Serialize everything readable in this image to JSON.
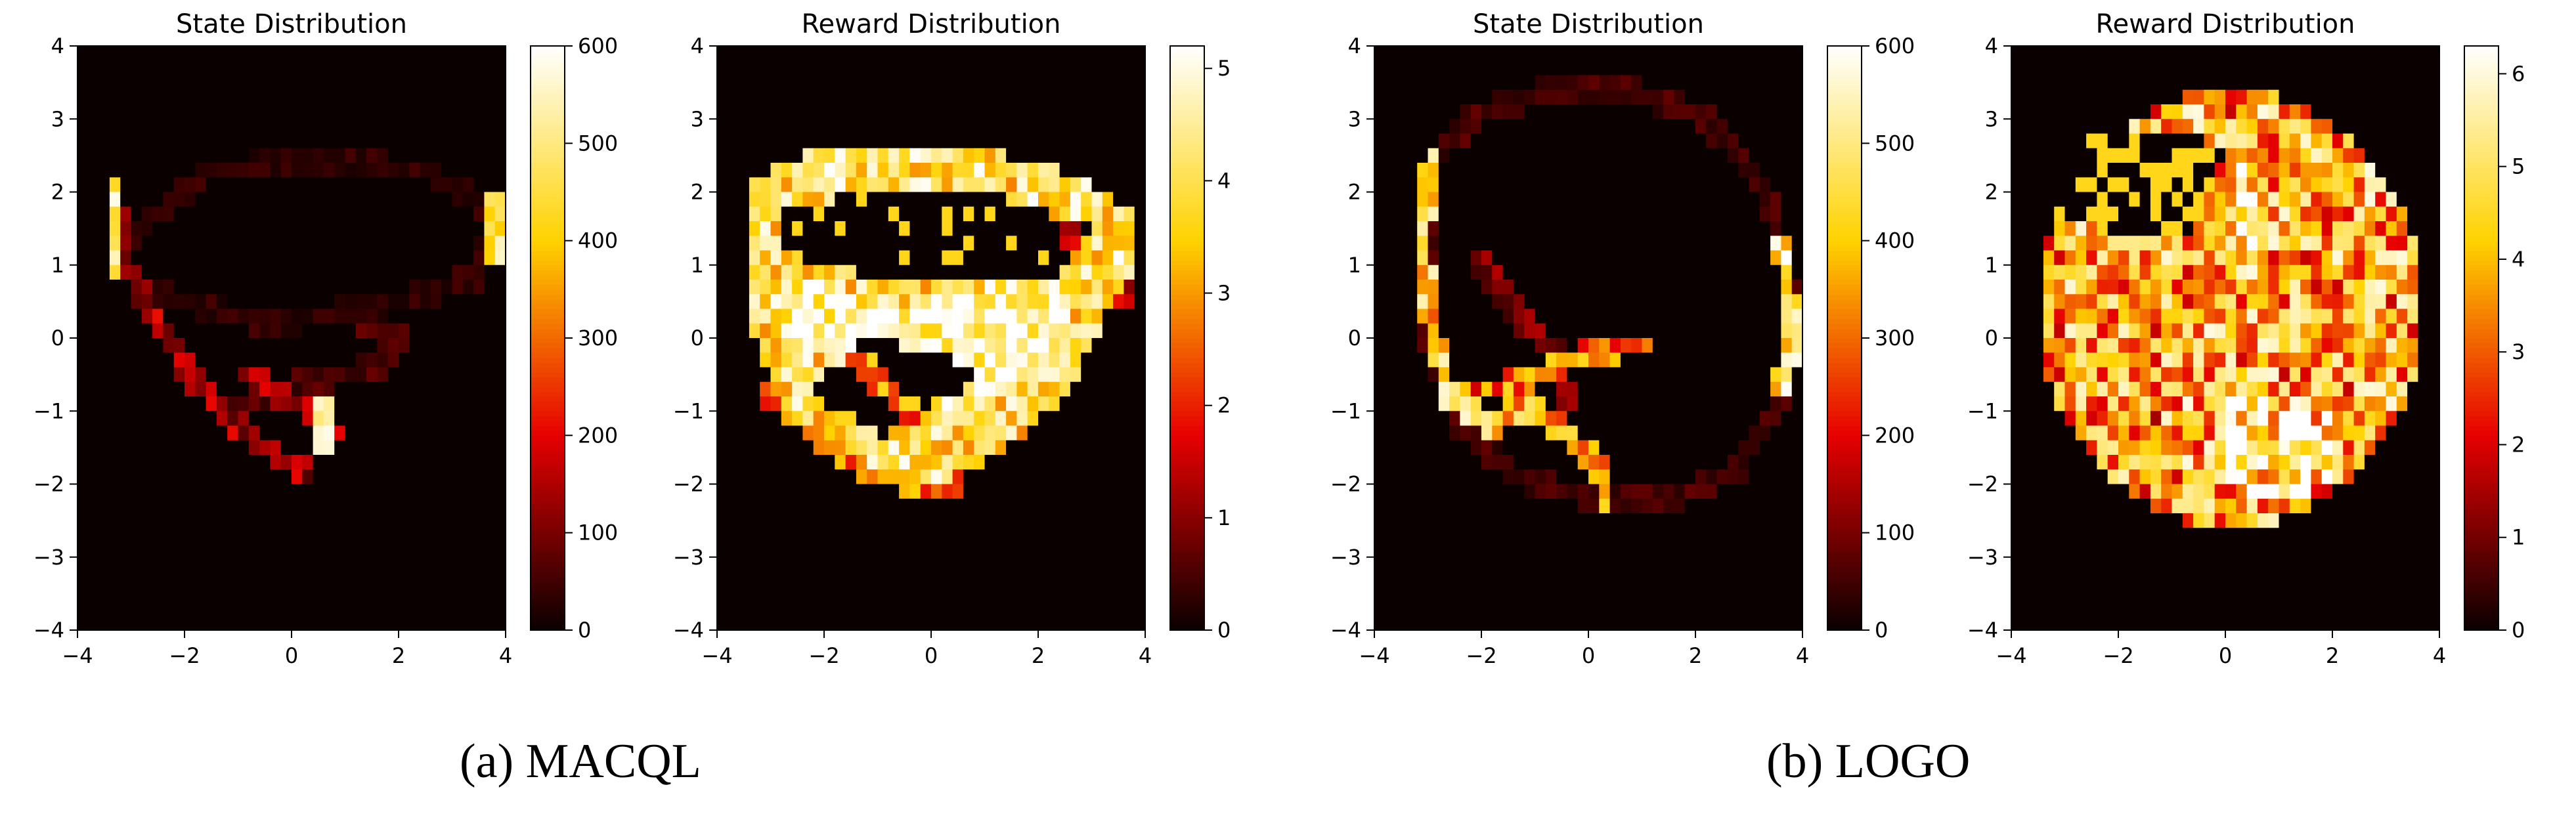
{
  "captions": {
    "a": "(a) MACQL",
    "b": "(b) LOGO"
  },
  "colormap": {
    "name": "hot",
    "stops": [
      "#0a0000",
      "#e60000",
      "#ffd200",
      "#ffffff"
    ]
  },
  "chart_data": [
    {
      "type": "heatmap",
      "title": "State Distribution",
      "xlabel": "",
      "ylabel": "",
      "xlim": [
        -4,
        4
      ],
      "ylim": [
        -4,
        4
      ],
      "xticks": [
        -4,
        -2,
        0,
        2,
        4
      ],
      "yticks": [
        -4,
        -3,
        -2,
        -1,
        0,
        1,
        2,
        3,
        4
      ],
      "colorbar": {
        "range": [
          0,
          600
        ],
        "ticks": [
          0,
          100,
          200,
          300,
          400,
          500,
          600
        ]
      },
      "grid": false,
      "grid_size": 40,
      "background_value": 0,
      "features": [
        {
          "kind": "stroke",
          "value": 140,
          "noise": 0.55,
          "points": [
            [
              -3.3,
              2.1
            ],
            [
              -3.2,
              1.2
            ],
            [
              -2.6,
              0.3
            ],
            [
              -1.8,
              -0.6
            ],
            [
              -1.0,
              -1.2
            ],
            [
              -0.3,
              -1.6
            ],
            [
              0.2,
              -1.8
            ]
          ]
        },
        {
          "kind": "stroke",
          "value": 520,
          "noise": 0.2,
          "points": [
            [
              -3.3,
              2.1
            ],
            [
              -3.3,
              1.0
            ]
          ]
        },
        {
          "kind": "stroke",
          "value": 560,
          "noise": 0.15,
          "points": [
            [
              0.6,
              -1.0
            ],
            [
              0.6,
              -1.5
            ]
          ]
        },
        {
          "kind": "stroke",
          "value": 480,
          "noise": 0.2,
          "points": [
            [
              3.8,
              1.9
            ],
            [
              3.8,
              1.2
            ]
          ]
        },
        {
          "kind": "stroke",
          "value": 35,
          "noise": 0.6,
          "points": [
            [
              -3.2,
              1.3
            ],
            [
              -1.5,
              2.3
            ],
            [
              0.5,
              2.4
            ],
            [
              2.5,
              2.3
            ],
            [
              3.8,
              1.7
            ],
            [
              3.4,
              0.8
            ],
            [
              1.5,
              0.4
            ],
            [
              -0.5,
              0.2
            ],
            [
              -2.6,
              0.6
            ]
          ]
        },
        {
          "kind": "stroke",
          "value": 60,
          "noise": 0.5,
          "points": [
            [
              -1.2,
              -1.0
            ],
            [
              0.3,
              -0.6
            ],
            [
              1.6,
              -0.4
            ],
            [
              2.0,
              0.0
            ],
            [
              1.2,
              0.3
            ]
          ]
        },
        {
          "kind": "stroke",
          "value": 150,
          "noise": 0.4,
          "points": [
            [
              -0.8,
              -0.5
            ],
            [
              0.3,
              -1.0
            ],
            [
              0.8,
              -1.3
            ]
          ]
        }
      ]
    },
    {
      "type": "heatmap",
      "title": "Reward Distribution",
      "xlabel": "",
      "ylabel": "",
      "xlim": [
        -4,
        4
      ],
      "ylim": [
        -4,
        4
      ],
      "xticks": [
        -4,
        -2,
        0,
        2,
        4
      ],
      "yticks": [
        -4,
        -3,
        -2,
        -1,
        0,
        1,
        2,
        3,
        4
      ],
      "colorbar": {
        "range": [
          0,
          5.2
        ],
        "ticks": [
          0,
          1,
          2,
          3,
          4,
          5
        ]
      },
      "grid": false,
      "grid_size": 40,
      "background_value": 0,
      "features": [
        {
          "kind": "polygon",
          "value": 4.0,
          "noise": 0.3,
          "points": [
            [
              -3.3,
              2.2
            ],
            [
              -2.0,
              2.6
            ],
            [
              0.0,
              2.7
            ],
            [
              2.2,
              2.4
            ],
            [
              3.7,
              1.8
            ],
            [
              3.8,
              1.0
            ],
            [
              3.3,
              0.4
            ],
            [
              2.6,
              -0.8
            ],
            [
              1.2,
              -1.6
            ],
            [
              0.2,
              -2.0
            ],
            [
              -1.4,
              -1.7
            ],
            [
              -2.6,
              -1.1
            ],
            [
              -3.3,
              0.0
            ]
          ]
        },
        {
          "kind": "polygon",
          "value": 4.9,
          "noise": 0.3,
          "points": [
            [
              -2.9,
              1.0
            ],
            [
              -1.0,
              0.4
            ],
            [
              1.0,
              0.6
            ],
            [
              2.8,
              0.5
            ],
            [
              2.2,
              -0.5
            ],
            [
              0.4,
              -1.2
            ],
            [
              -1.0,
              -0.6
            ],
            [
              -2.6,
              0.0
            ]
          ]
        },
        {
          "kind": "polygon",
          "value": 0,
          "noise": 0.1,
          "points": [
            [
              -2.8,
              1.7
            ],
            [
              -1.2,
              2.0
            ],
            [
              1.0,
              2.0
            ],
            [
              3.0,
              1.5
            ],
            [
              2.4,
              0.9
            ],
            [
              0.4,
              0.8
            ],
            [
              -1.5,
              0.9
            ],
            [
              -2.7,
              1.2
            ]
          ]
        },
        {
          "kind": "polygon",
          "value": 0,
          "noise": 0.15,
          "points": [
            [
              -2.2,
              -0.6
            ],
            [
              -1.2,
              0.0
            ],
            [
              0.0,
              -0.2
            ],
            [
              1.0,
              -0.4
            ],
            [
              0.3,
              -0.9
            ],
            [
              -0.9,
              -1.3
            ],
            [
              -1.8,
              -1.2
            ]
          ]
        },
        {
          "kind": "stroke",
          "value": 2.0,
          "noise": 0.2,
          "points": [
            [
              -1.6,
              -0.1
            ],
            [
              -0.6,
              -0.9
            ],
            [
              0.4,
              -2.0
            ]
          ]
        },
        {
          "kind": "stroke",
          "value": 2.6,
          "noise": 0.35,
          "points": [
            [
              -3.0,
              -0.8
            ],
            [
              -2.0,
              -1.4
            ],
            [
              -1.0,
              -1.9
            ],
            [
              0.0,
              -2.0
            ]
          ]
        },
        {
          "kind": "stroke",
          "value": 1.5,
          "noise": 0.4,
          "points": [
            [
              2.6,
              1.4
            ],
            [
              3.2,
              1.0
            ],
            [
              3.6,
              0.6
            ]
          ]
        }
      ]
    },
    {
      "type": "heatmap",
      "title": "State Distribution",
      "xlabel": "",
      "ylabel": "",
      "xlim": [
        -4,
        4
      ],
      "ylim": [
        -4,
        4
      ],
      "xticks": [
        -4,
        -2,
        0,
        2,
        4
      ],
      "yticks": [
        -4,
        -3,
        -2,
        -1,
        0,
        1,
        2,
        3,
        4
      ],
      "colorbar": {
        "range": [
          0,
          600
        ],
        "ticks": [
          0,
          100,
          200,
          300,
          400,
          500,
          600
        ]
      },
      "grid": false,
      "grid_size": 40,
      "background_value": 0,
      "features": [
        {
          "kind": "stroke",
          "value": 55,
          "noise": 0.5,
          "points": [
            [
              -3.0,
              2.3
            ],
            [
              -2.2,
              3.0
            ],
            [
              -0.8,
              3.4
            ],
            [
              0.8,
              3.4
            ],
            [
              2.2,
              3.0
            ],
            [
              3.3,
              2.0
            ],
            [
              3.8,
              0.6
            ],
            [
              3.6,
              -0.8
            ],
            [
              2.8,
              -1.8
            ],
            [
              1.5,
              -2.2
            ],
            [
              0.0,
              -2.2
            ],
            [
              -1.4,
              -1.9
            ],
            [
              -2.4,
              -1.2
            ],
            [
              -3.0,
              0.0
            ],
            [
              -3.0,
              1.2
            ],
            [
              -3.0,
              2.3
            ]
          ]
        },
        {
          "kind": "stroke",
          "value": 420,
          "noise": 0.35,
          "points": [
            [
              -2.9,
              2.5
            ],
            [
              -3.1,
              1.5
            ],
            [
              -3.0,
              0.3
            ],
            [
              -2.6,
              -0.8
            ],
            [
              -1.8,
              -1.2
            ],
            [
              -1.0,
              -1.0
            ]
          ]
        },
        {
          "kind": "stroke",
          "value": 300,
          "noise": 0.45,
          "points": [
            [
              -2.4,
              -0.8
            ],
            [
              -1.2,
              -0.6
            ],
            [
              0.0,
              -0.2
            ],
            [
              1.0,
              -0.1
            ]
          ]
        },
        {
          "kind": "stroke",
          "value": 330,
          "noise": 0.4,
          "points": [
            [
              -1.4,
              -1.0
            ],
            [
              -0.6,
              -1.2
            ],
            [
              0.2,
              -1.7
            ],
            [
              0.3,
              -2.2
            ]
          ]
        },
        {
          "kind": "stroke",
          "value": 100,
          "noise": 0.55,
          "points": [
            [
              -2.0,
              1.0
            ],
            [
              -1.2,
              0.2
            ],
            [
              -0.6,
              -0.2
            ],
            [
              -0.4,
              -0.8
            ]
          ]
        },
        {
          "kind": "stroke",
          "value": 470,
          "noise": 0.3,
          "points": [
            [
              3.6,
              1.3
            ],
            [
              3.8,
              0.3
            ],
            [
              3.6,
              -0.7
            ]
          ]
        },
        {
          "kind": "stroke",
          "value": 560,
          "noise": 0.15,
          "points": [
            [
              3.8,
              0.2
            ],
            [
              3.9,
              -0.2
            ]
          ]
        }
      ]
    },
    {
      "type": "heatmap",
      "title": "Reward Distribution",
      "xlabel": "",
      "ylabel": "",
      "xlim": [
        -4,
        4
      ],
      "ylim": [
        -4,
        4
      ],
      "xticks": [
        -4,
        -2,
        0,
        2,
        4
      ],
      "yticks": [
        -4,
        -3,
        -2,
        -1,
        0,
        1,
        2,
        3,
        4
      ],
      "colorbar": {
        "range": [
          0,
          6.3
        ],
        "ticks": [
          0,
          1,
          2,
          3,
          4,
          5,
          6
        ]
      },
      "grid": false,
      "grid_size": 40,
      "background_value": 0,
      "features": [
        {
          "kind": "ellipse",
          "value": 3.9,
          "noise": 0.55,
          "cx": 0.1,
          "cy": 0.4,
          "rx": 3.6,
          "ry": 3.0
        },
        {
          "kind": "polygon",
          "value": 0,
          "noise": 0.35,
          "points": [
            [
              -2.8,
              2.7
            ],
            [
              -1.4,
              2.9
            ],
            [
              0.0,
              2.6
            ],
            [
              -0.6,
              1.5
            ],
            [
              -2.0,
              1.4
            ],
            [
              -3.0,
              1.7
            ]
          ]
        },
        {
          "kind": "polygon",
          "value": 5.2,
          "noise": 0.5,
          "points": [
            [
              0.0,
              -0.8
            ],
            [
              1.8,
              -0.8
            ],
            [
              2.2,
              -1.8
            ],
            [
              1.0,
              -2.4
            ],
            [
              0.0,
              -2.0
            ]
          ]
        },
        {
          "kind": "stroke",
          "value": 2.2,
          "noise": 0.4,
          "points": [
            [
              -1.6,
              -1.0
            ],
            [
              -0.8,
              -1.6
            ],
            [
              -0.4,
              -2.2
            ]
          ]
        },
        {
          "kind": "stroke",
          "value": 5.4,
          "noise": 0.45,
          "points": [
            [
              0.0,
              2.8
            ],
            [
              0.4,
              1.8
            ],
            [
              0.6,
              0.8
            ]
          ]
        }
      ]
    }
  ]
}
